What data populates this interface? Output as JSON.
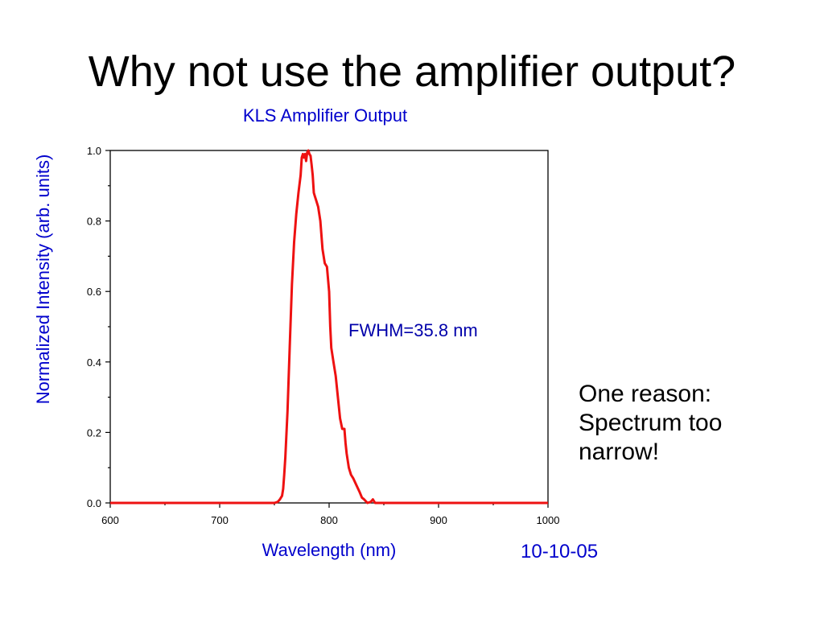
{
  "slide": {
    "title": "Why not use the amplifier output?",
    "note_lines": [
      "One reason:",
      "Spectrum too",
      "narrow!"
    ],
    "date": "10-10-05"
  },
  "colors": {
    "line": "#ee1111",
    "label_blue": "#0000cc",
    "axis": "#000000"
  },
  "chart_data": {
    "type": "line",
    "title": "KLS Amplifier Output",
    "xlabel": "Wavelength (nm)",
    "ylabel": "Normalized Intensity (arb. units)",
    "xlim": [
      600,
      1000
    ],
    "ylim": [
      0,
      1.0
    ],
    "xticks": [
      600,
      700,
      800,
      900,
      1000
    ],
    "xtick_labels": [
      "600",
      "700",
      "800",
      "900",
      "1000"
    ],
    "yticks": [
      0,
      0.2,
      0.4,
      0.6,
      0.8,
      1.0
    ],
    "ytick_labels": [
      "0.0",
      "0.2",
      "0.4",
      "0.6",
      "0.8",
      "1.0"
    ],
    "grid": false,
    "annotation": "FWHM=35.8 nm",
    "series": [
      {
        "x": [
          600,
          650,
          700,
          740,
          750,
          753,
          755,
          757,
          758,
          759,
          760,
          762,
          764,
          766,
          768,
          770,
          772,
          774,
          775,
          776,
          777,
          778,
          779,
          780,
          781,
          782,
          783,
          784,
          785,
          786,
          787,
          788,
          790,
          792,
          794,
          796,
          798,
          800,
          801,
          802,
          804,
          806,
          808,
          810,
          812,
          814,
          815,
          816,
          818,
          820,
          822,
          825,
          828,
          830,
          832,
          835,
          838,
          840,
          842,
          850,
          900,
          950,
          1000
        ],
        "y": [
          0.0,
          0.0,
          0.0,
          0.0,
          0.0,
          0.003,
          0.01,
          0.02,
          0.04,
          0.08,
          0.13,
          0.26,
          0.44,
          0.62,
          0.74,
          0.82,
          0.88,
          0.93,
          0.98,
          0.99,
          0.98,
          0.99,
          0.97,
          0.995,
          1.0,
          0.99,
          0.985,
          0.96,
          0.93,
          0.88,
          0.87,
          0.86,
          0.84,
          0.8,
          0.72,
          0.68,
          0.67,
          0.6,
          0.5,
          0.44,
          0.4,
          0.36,
          0.3,
          0.24,
          0.21,
          0.21,
          0.17,
          0.14,
          0.1,
          0.08,
          0.07,
          0.05,
          0.03,
          0.015,
          0.01,
          0.0,
          0.003,
          0.01,
          0.0,
          0.0,
          0.0,
          0.0,
          0.0
        ]
      }
    ]
  }
}
